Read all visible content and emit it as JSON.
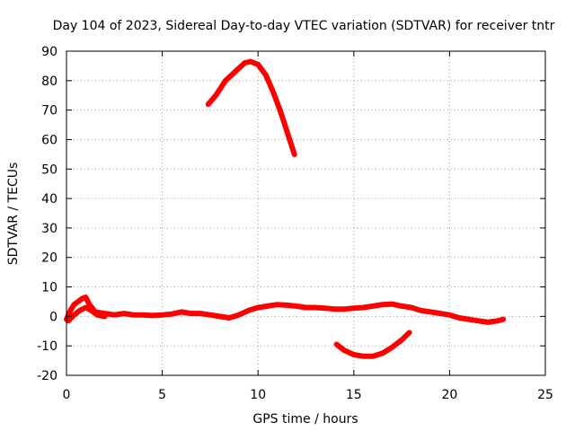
{
  "chart_data": {
    "type": "line",
    "title": "Day 104 of 2023, Sidereal Day-to-day VTEC variation (SDTVAR) for receiver tntr",
    "xlabel": "GPS time / hours",
    "ylabel": "SDTVAR / TECUs",
    "xlim": [
      0,
      25
    ],
    "ylim": [
      -20,
      90
    ],
    "xticks": [
      0,
      5,
      10,
      15,
      20,
      25
    ],
    "yticks": [
      -20,
      -10,
      0,
      10,
      20,
      30,
      40,
      50,
      60,
      70,
      80,
      90
    ],
    "grid": true,
    "series_color": "#ff0000",
    "series": [
      {
        "x": [
          0.0,
          0.2,
          0.4,
          0.6,
          0.8,
          1.0,
          1.2,
          1.5,
          2.0,
          2.5,
          3.0,
          3.5,
          4.0,
          4.5,
          5.0,
          5.5,
          6.0,
          6.5,
          7.0,
          7.5,
          8.0,
          8.5,
          9.0,
          9.5,
          10.0,
          10.5,
          11.0,
          11.5,
          12.0,
          12.5,
          13.0,
          13.5,
          14.0,
          14.5,
          15.0,
          15.5,
          16.0,
          16.5,
          17.0,
          17.5,
          18.0,
          18.5,
          19.0,
          19.5,
          20.0,
          20.5,
          21.0,
          21.5,
          22.0,
          22.5,
          22.8
        ],
        "y": [
          -1,
          2,
          4,
          5,
          6,
          6.5,
          4,
          1.5,
          1,
          0.5,
          1,
          0.5,
          0.5,
          0.3,
          0.5,
          0.8,
          1.5,
          1,
          1,
          0.5,
          0,
          -0.5,
          0.5,
          2,
          3,
          3.5,
          4,
          3.8,
          3.5,
          3,
          3,
          2.8,
          2.5,
          2.5,
          2.8,
          3,
          3.5,
          4,
          4.2,
          3.5,
          3,
          2,
          1.5,
          1,
          0.5,
          -0.5,
          -1,
          -1.5,
          -2,
          -1.5,
          -1
        ]
      },
      {
        "x": [
          0.1,
          0.4,
          0.7,
          1.0,
          1.3,
          1.6,
          2.0
        ],
        "y": [
          -1.5,
          0.5,
          2,
          3,
          2,
          0.5,
          0
        ]
      },
      {
        "x": [
          7.4,
          7.8,
          8.3,
          8.8,
          9.3,
          9.6,
          10.0,
          10.4,
          10.8,
          11.2,
          11.6,
          11.9
        ],
        "y": [
          72,
          75,
          80,
          83,
          86,
          86.5,
          85.5,
          82,
          76,
          69,
          61,
          55
        ]
      },
      {
        "x": [
          14.1,
          14.5,
          15.0,
          15.5,
          16.0,
          16.5,
          17.0,
          17.5,
          17.9
        ],
        "y": [
          -9.5,
          -11.5,
          -13,
          -13.5,
          -13.5,
          -12.5,
          -10.5,
          -8,
          -5.5
        ]
      }
    ]
  }
}
